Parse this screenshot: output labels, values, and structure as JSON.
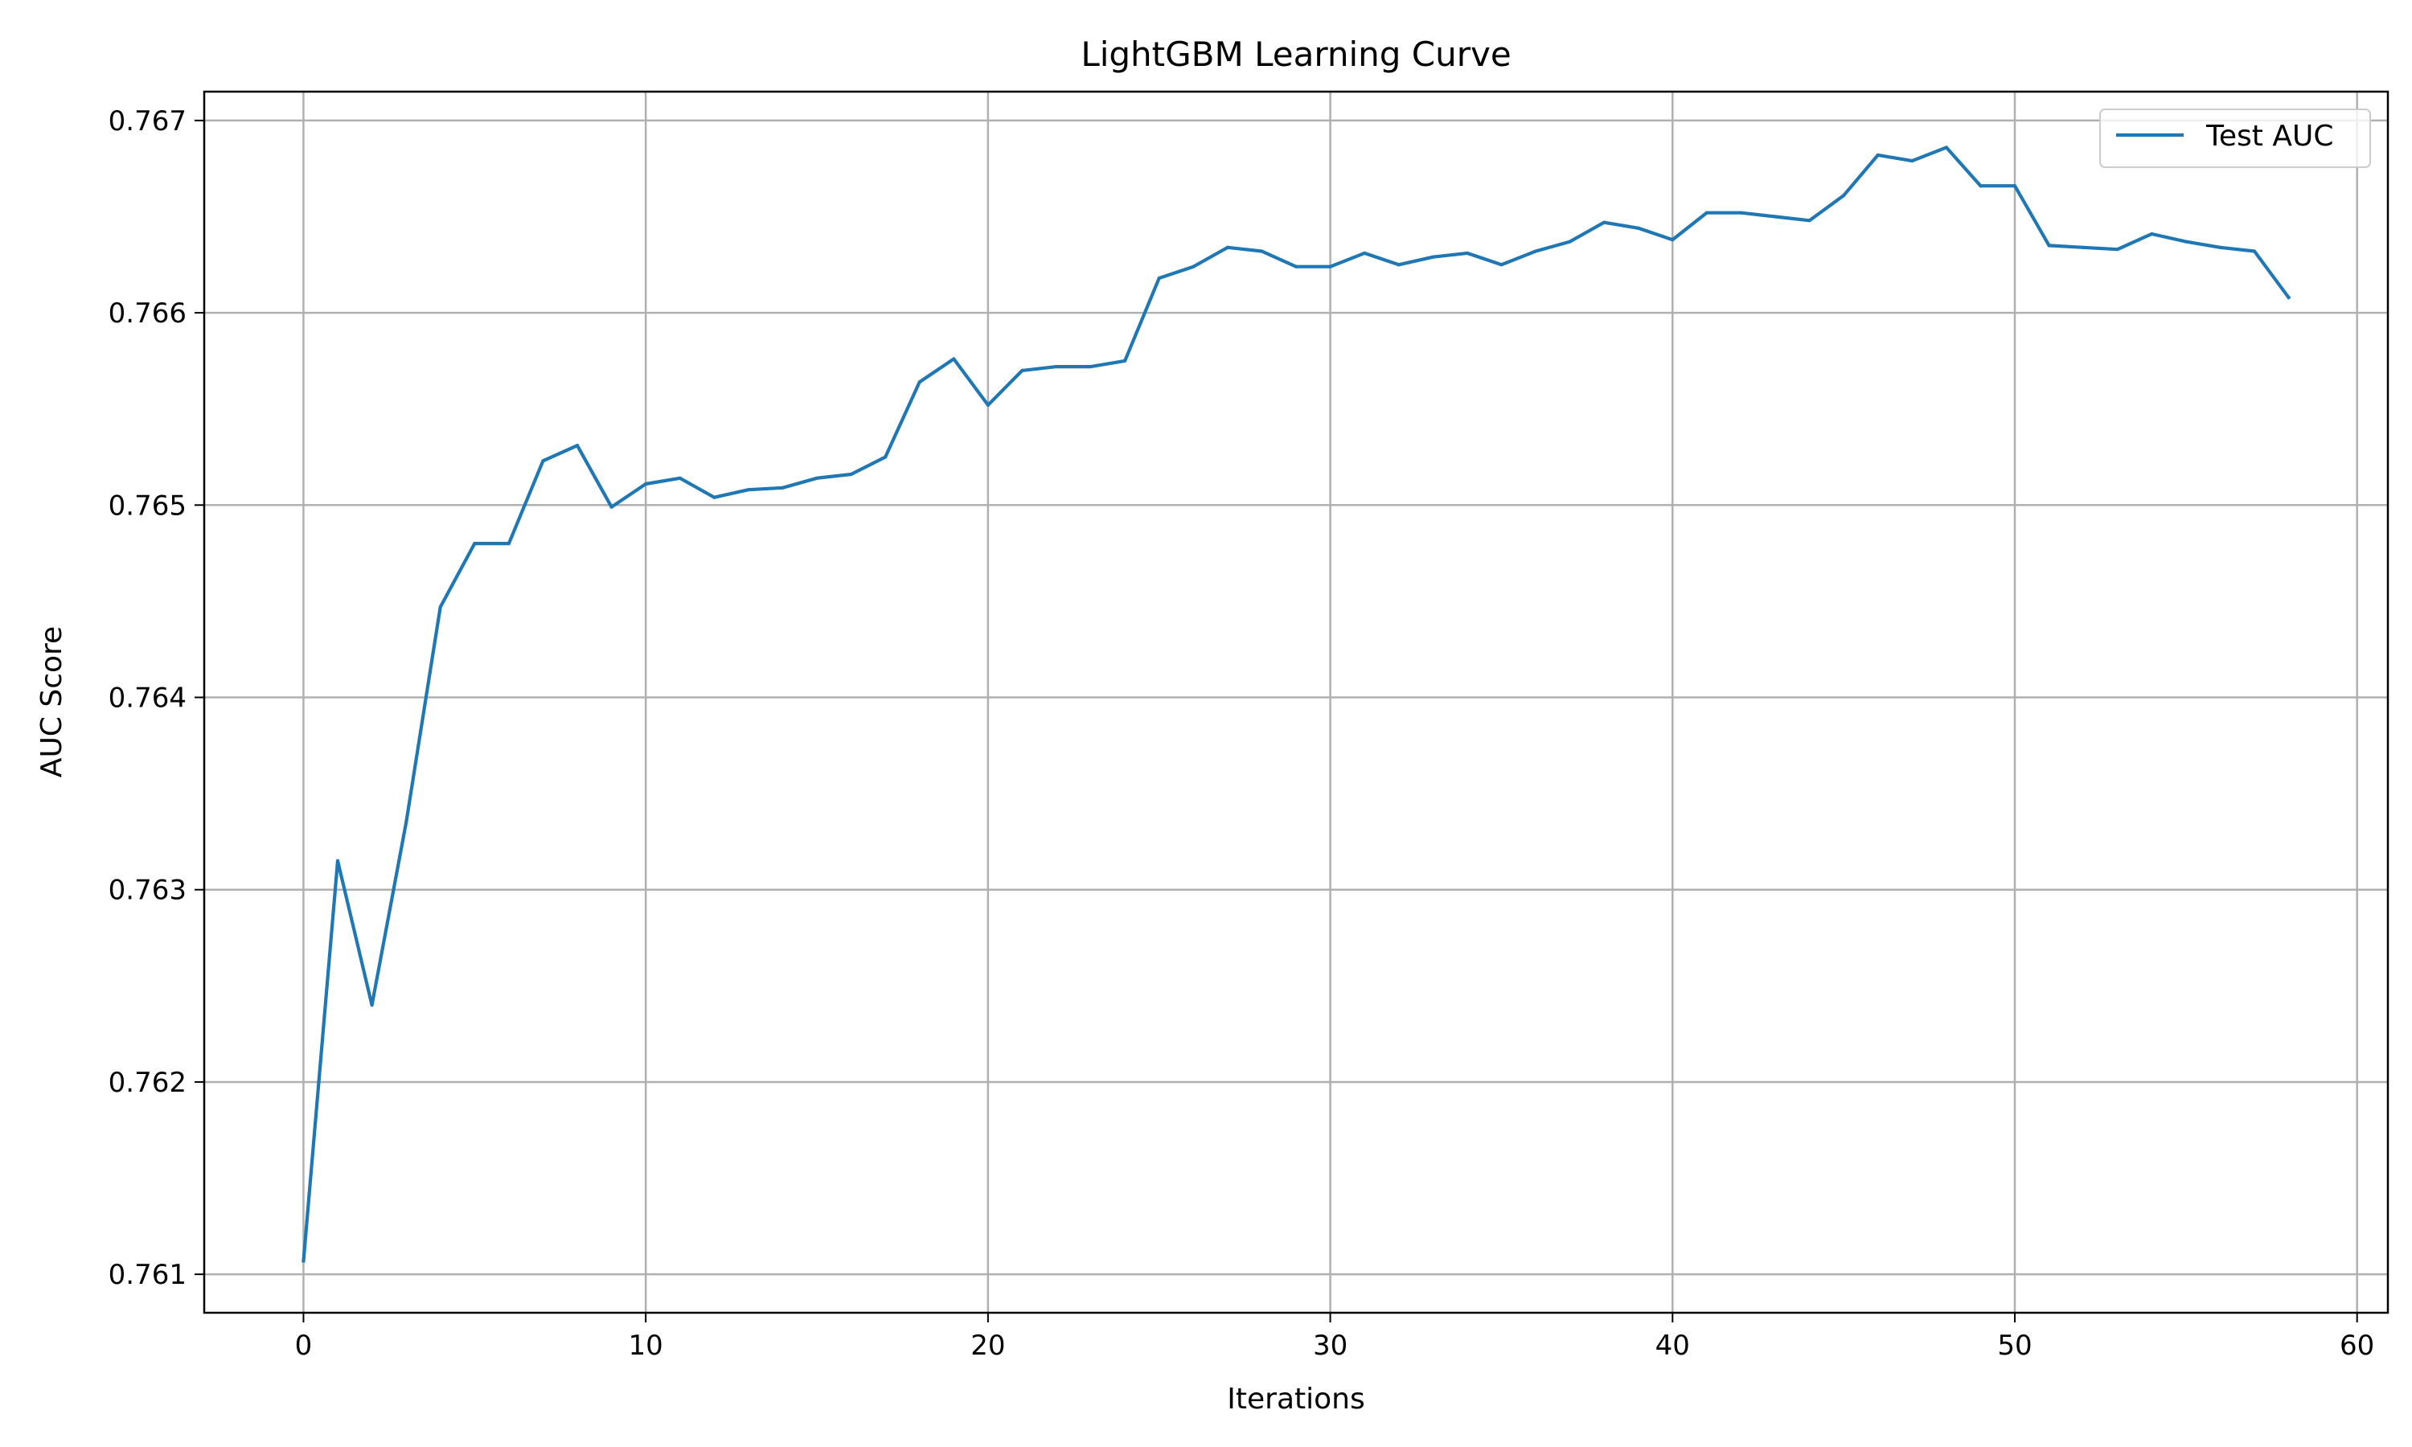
{
  "chart_data": {
    "type": "line",
    "title": "LightGBM Learning Curve",
    "xlabel": "Iterations",
    "ylabel": "AUC Score",
    "xlim": [
      -2.9,
      60.9
    ],
    "ylim": [
      0.7608,
      0.76715
    ],
    "xticks": [
      0,
      10,
      20,
      30,
      40,
      50,
      60
    ],
    "yticks": [
      0.761,
      0.762,
      0.763,
      0.764,
      0.765,
      0.766,
      0.767
    ],
    "xtick_labels": [
      "0",
      "10",
      "20",
      "30",
      "40",
      "50",
      "60"
    ],
    "ytick_labels": [
      "0.761",
      "0.762",
      "0.763",
      "0.764",
      "0.765",
      "0.766",
      "0.767"
    ],
    "grid": true,
    "legend_position": "top-right",
    "series": [
      {
        "name": "Test AUC",
        "color": "#1f77b4",
        "x": [
          0,
          1,
          2,
          3,
          4,
          5,
          6,
          7,
          8,
          9,
          10,
          11,
          12,
          13,
          14,
          15,
          16,
          17,
          18,
          19,
          20,
          21,
          22,
          23,
          24,
          25,
          26,
          27,
          28,
          29,
          30,
          31,
          32,
          33,
          34,
          35,
          36,
          37,
          38,
          39,
          40,
          41,
          42,
          43,
          44,
          45,
          46,
          47,
          48,
          49,
          50,
          51,
          52,
          53,
          54,
          55,
          56,
          57,
          58
        ],
        "values": [
          0.76107,
          0.76315,
          0.7624,
          0.76335,
          0.76447,
          0.7648,
          0.7648,
          0.76523,
          0.76531,
          0.76499,
          0.76511,
          0.76514,
          0.76504,
          0.76508,
          0.76509,
          0.76514,
          0.76516,
          0.76525,
          0.76564,
          0.76576,
          0.76552,
          0.7657,
          0.76572,
          0.76572,
          0.76575,
          0.76618,
          0.76624,
          0.76634,
          0.76632,
          0.76624,
          0.76624,
          0.76631,
          0.76625,
          0.76629,
          0.76631,
          0.76625,
          0.76632,
          0.76637,
          0.76647,
          0.76644,
          0.76638,
          0.76652,
          0.76652,
          0.7665,
          0.76648,
          0.76661,
          0.76682,
          0.76679,
          0.76686,
          0.76666,
          0.76666,
          0.76635,
          0.76634,
          0.76633,
          0.76641,
          0.76637,
          0.76634,
          0.76632,
          0.76608
        ]
      }
    ]
  }
}
